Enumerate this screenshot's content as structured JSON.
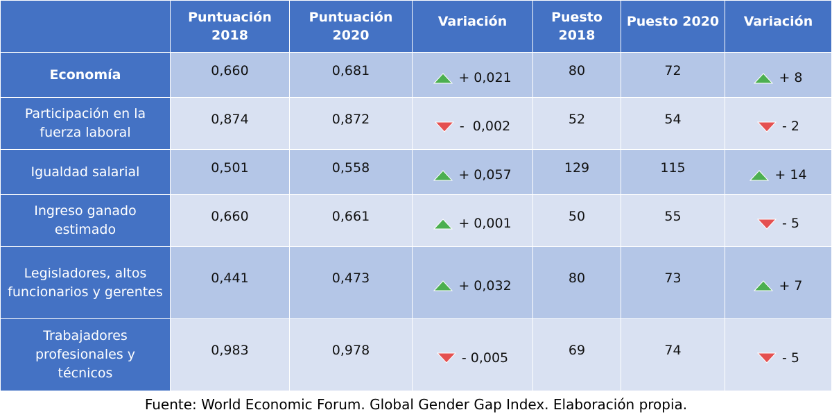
{
  "table": {
    "headers": [
      "",
      "Puntuación 2018",
      "Puntuación 2020",
      "Variación",
      "Puesto 2018",
      "Puesto 2020",
      "Variación"
    ],
    "rows": [
      {
        "label": "Economía",
        "score_2018": "0,660",
        "score_2020": "0,681",
        "score_variation": "+ 0,021",
        "score_trend": "up",
        "rank_2018": "80",
        "rank_2020": "72",
        "rank_variation": "+ 8",
        "rank_trend": "up"
      },
      {
        "label": "Participación en la fuerza laboral",
        "score_2018": "0,874",
        "score_2020": "0,872",
        "score_variation": "-  0,002",
        "score_trend": "down",
        "rank_2018": "52",
        "rank_2020": "54",
        "rank_variation": "- 2",
        "rank_trend": "down"
      },
      {
        "label": "Igualdad salarial",
        "score_2018": "0,501",
        "score_2020": "0,558",
        "score_variation": "+ 0,057",
        "score_trend": "up",
        "rank_2018": "129",
        "rank_2020": "115",
        "rank_variation": "+ 14",
        "rank_trend": "up"
      },
      {
        "label": "Ingreso ganado estimado",
        "score_2018": "0,660",
        "score_2020": "0,661",
        "score_variation": "+ 0,001",
        "score_trend": "up",
        "rank_2018": "50",
        "rank_2020": "55",
        "rank_variation": "- 5",
        "rank_trend": "down"
      },
      {
        "label": "Legisladores, altos funcionarios y gerentes",
        "score_2018": "0,441",
        "score_2020": "0,473",
        "score_variation": "+ 0,032",
        "score_trend": "up",
        "rank_2018": "80",
        "rank_2020": "73",
        "rank_variation": "+ 7",
        "rank_trend": "up"
      },
      {
        "label": "Trabajadores profesionales y técnicos",
        "score_2018": "0,983",
        "score_2020": "0,978",
        "score_variation": "- 0,005",
        "score_trend": "down",
        "rank_2018": "69",
        "rank_2020": "74",
        "rank_variation": "- 5",
        "rank_trend": "down"
      }
    ]
  },
  "source": "Fuente: World Economic Forum. Global Gender Gap Index. Elaboración propia.",
  "colors": {
    "header_bg": "#4472c4",
    "row_dark": "#b4c6e7",
    "row_light": "#d9e1f2",
    "up": "#4caf50",
    "down": "#e45050"
  },
  "icons": {
    "up": "triangle-up-icon",
    "down": "triangle-down-icon"
  }
}
